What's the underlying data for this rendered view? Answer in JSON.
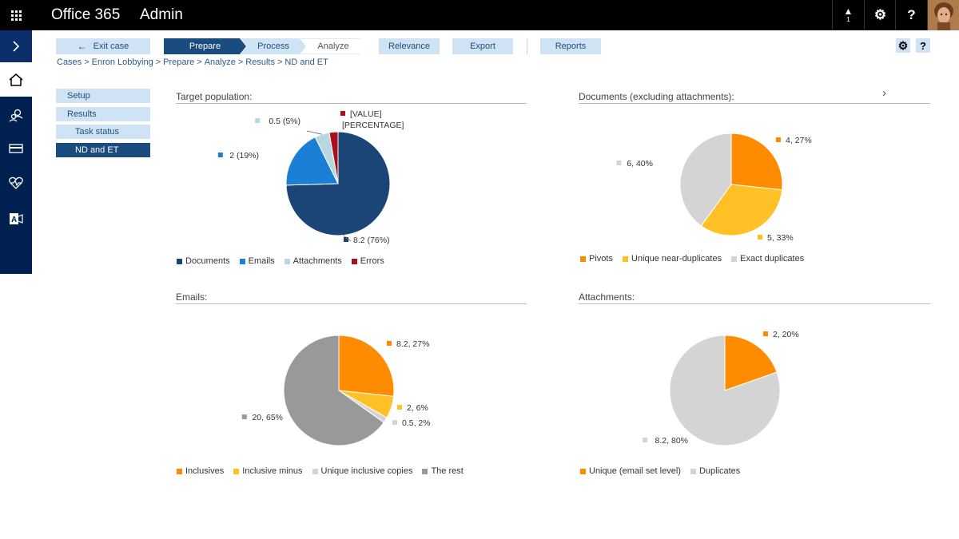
{
  "topbar": {
    "brand": "Office 365",
    "section": "Admin",
    "alert_count": "1",
    "settings_glyph": "⚙",
    "help_glyph": "?"
  },
  "toolbar": {
    "exit_label": "Exit case",
    "steps": [
      "Prepare",
      "Process",
      "Analyze"
    ],
    "relevance_label": "Relevance",
    "export_label": "Export",
    "reports_label": "Reports",
    "settings_glyph": "⚙",
    "help_glyph": "?"
  },
  "breadcrumb": [
    "Cases",
    "Enron Lobbying",
    "Prepare",
    "Analyze",
    "Results",
    "ND and ET"
  ],
  "breadcrumb_sep": ">",
  "sidemenu": {
    "setup": "Setup",
    "results": "Results",
    "task_status": "Task status",
    "nd_et": "ND and ET"
  },
  "icons": {
    "waffle": "app-launcher-icon",
    "rail": [
      "expand-icon",
      "home-icon",
      "users-icon",
      "billing-icon",
      "health-icon",
      "exchange-icon"
    ]
  },
  "colors": {
    "topbar": "#000000",
    "rail": "#002050",
    "active": "#1a4c80",
    "tab": "#cfe3f4"
  },
  "chart_data": [
    {
      "type": "pie",
      "title": "Target population:",
      "categories": [
        "Documents",
        "Emails",
        "Attachments",
        "Errors"
      ],
      "values": [
        8.2,
        2,
        0.5,
        0.3
      ],
      "percents": [
        76,
        19,
        5,
        null
      ],
      "labels": [
        "8.2 (76%)",
        "2 (19%)",
        "0.5 (5%)",
        "[VALUE]\n[PERCENTAGE]"
      ],
      "colors": [
        "#1a4576",
        "#1c7fd6",
        "#b7d8e0",
        "#a8111c"
      ],
      "legend": "bottom"
    },
    {
      "type": "pie",
      "title": "Documents (excluding attachments):",
      "categories": [
        "Pivots",
        "Unique near-duplicates",
        "Exact duplicates"
      ],
      "values": [
        4,
        5,
        6
      ],
      "percents": [
        27,
        33,
        40
      ],
      "labels": [
        "4, 27%",
        "5, 33%",
        "6, 40%"
      ],
      "colors": [
        "#ff8c00",
        "#ffc125",
        "#d4d4d4"
      ],
      "legend": "bottom"
    },
    {
      "type": "pie",
      "title": "Emails:",
      "categories": [
        "Inclusives",
        "Inclusive minus",
        "Unique inclusive copies",
        "The rest"
      ],
      "values": [
        8.2,
        2,
        0.5,
        20
      ],
      "percents": [
        27,
        6,
        2,
        65
      ],
      "labels": [
        "8.2, 27%",
        "2, 6%",
        "0.5, 2%",
        "20, 65%"
      ],
      "colors": [
        "#ff8c00",
        "#ffc125",
        "#d4d4d4",
        "#999999"
      ],
      "legend": "bottom"
    },
    {
      "type": "pie",
      "title": "Attachments:",
      "categories": [
        "Unique (email set level)",
        "Duplicates"
      ],
      "values": [
        2,
        8.2
      ],
      "percents": [
        20,
        80
      ],
      "labels": [
        "2, 20%",
        "8.2, 80%"
      ],
      "colors": [
        "#ff8c00",
        "#d4d4d4"
      ],
      "legend": "bottom"
    }
  ]
}
